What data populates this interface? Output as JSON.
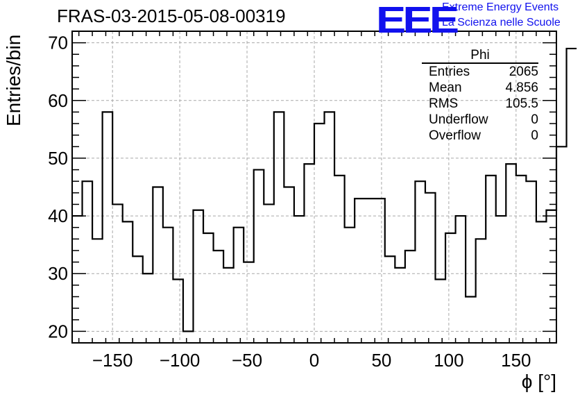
{
  "title": "FRAS-03-2015-05-08-00319",
  "logo": {
    "mark": "EEE",
    "line1": "Extreme Energy Events",
    "line2": "La Scienza nelle Scuole",
    "color": "#1111ee"
  },
  "stats_box": {
    "name": "Phi",
    "rows": [
      {
        "label": "Entries",
        "value": "2065"
      },
      {
        "label": "Mean",
        "value": "4.856"
      },
      {
        "label": "RMS",
        "value": "105.5"
      },
      {
        "label": "Underflow",
        "value": "0"
      },
      {
        "label": "Overflow",
        "value": "0"
      }
    ]
  },
  "chart_data": {
    "type": "bar",
    "style": "step-histogram",
    "xlabel": "ϕ [°]",
    "ylabel": "Entries/bin",
    "xlim": [
      -180,
      180
    ],
    "ylim": [
      18,
      72
    ],
    "xticks": [
      -150,
      -100,
      -50,
      0,
      50,
      100,
      150
    ],
    "xtick_labels": [
      "−150",
      "−100",
      "−50",
      "0",
      "50",
      "100",
      "150"
    ],
    "yticks": [
      20,
      30,
      40,
      50,
      60,
      70
    ],
    "grid": true,
    "bin_edges_start": -180,
    "bin_width": 7.5,
    "values": [
      40,
      46,
      36,
      58,
      42,
      39,
      33,
      30,
      45,
      38,
      29,
      20,
      41,
      37,
      34,
      31,
      38,
      32,
      48,
      42,
      58,
      45,
      40,
      49,
      56,
      58,
      47,
      38,
      43,
      43,
      43,
      33,
      31,
      34,
      46,
      44,
      29,
      37,
      40,
      26,
      36,
      47,
      40,
      49,
      47,
      46,
      39,
      41,
      52,
      69
    ]
  }
}
